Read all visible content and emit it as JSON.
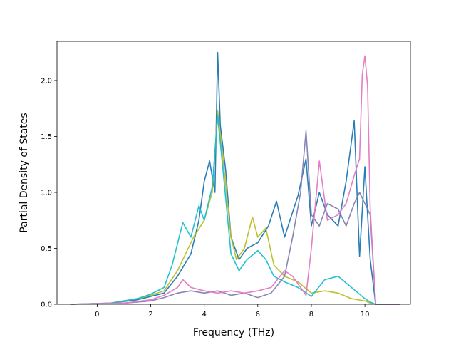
{
  "chart_data": {
    "type": "line",
    "title": "",
    "xlabel": "Frequency (THz)",
    "ylabel": "Partial Density of States",
    "xlim": [
      -1.5,
      11.7
    ],
    "ylim": [
      0,
      2.35
    ],
    "xticks": [
      0,
      2,
      4,
      6,
      8,
      10
    ],
    "yticks": [
      0.0,
      0.5,
      1.0,
      1.5,
      2.0
    ],
    "xtick_labels": [
      "0",
      "2",
      "4",
      "6",
      "8",
      "10"
    ],
    "ytick_labels": [
      "0.0",
      "0.5",
      "1.0",
      "1.5",
      "2.0"
    ],
    "grid": false,
    "legend": "none",
    "series": [
      {
        "color": "#1f77b4",
        "x": [
          -1.0,
          0.5,
          1.5,
          2.5,
          3.0,
          3.5,
          3.8,
          4.0,
          4.2,
          4.4,
          4.5,
          4.6,
          4.8,
          5.0,
          5.3,
          5.6,
          6.0,
          6.4,
          6.7,
          7.0,
          7.2,
          7.5,
          7.8,
          8.0,
          8.3,
          8.6,
          9.0,
          9.3,
          9.6,
          9.8,
          10.0,
          10.1,
          10.2,
          10.4,
          11.3
        ],
        "y": [
          0.0,
          0.01,
          0.04,
          0.1,
          0.25,
          0.45,
          0.75,
          1.1,
          1.28,
          1.0,
          2.25,
          1.6,
          1.2,
          0.6,
          0.4,
          0.5,
          0.55,
          0.7,
          0.92,
          0.6,
          0.75,
          0.97,
          1.3,
          0.7,
          1.0,
          0.8,
          0.7,
          1.1,
          1.64,
          0.43,
          1.23,
          0.8,
          0.4,
          0.0,
          0.0
        ]
      },
      {
        "color": "#bcbd22",
        "x": [
          -1.0,
          0.5,
          1.5,
          2.0,
          2.5,
          3.0,
          3.3,
          3.6,
          4.0,
          4.3,
          4.5,
          4.7,
          5.0,
          5.2,
          5.5,
          5.8,
          6.0,
          6.3,
          6.6,
          7.0,
          7.5,
          8.0,
          8.5,
          9.0,
          9.5,
          10.0,
          10.2,
          10.4,
          11.3
        ],
        "y": [
          0.0,
          0.01,
          0.05,
          0.08,
          0.12,
          0.3,
          0.45,
          0.6,
          0.75,
          1.0,
          1.73,
          1.3,
          0.6,
          0.4,
          0.5,
          0.78,
          0.6,
          0.68,
          0.35,
          0.25,
          0.2,
          0.1,
          0.12,
          0.1,
          0.05,
          0.03,
          0.01,
          0.0,
          0.0
        ]
      },
      {
        "color": "#17becf",
        "x": [
          -1.0,
          0.5,
          1.5,
          2.0,
          2.5,
          2.8,
          3.2,
          3.5,
          3.8,
          4.0,
          4.3,
          4.5,
          4.7,
          5.0,
          5.3,
          5.6,
          6.0,
          6.3,
          6.6,
          7.0,
          7.5,
          8.0,
          8.5,
          9.0,
          9.5,
          10.0,
          10.2,
          10.4,
          11.3
        ],
        "y": [
          0.0,
          0.01,
          0.05,
          0.09,
          0.15,
          0.35,
          0.73,
          0.6,
          0.88,
          0.75,
          1.05,
          1.68,
          1.2,
          0.45,
          0.3,
          0.4,
          0.48,
          0.4,
          0.25,
          0.2,
          0.15,
          0.07,
          0.22,
          0.25,
          0.15,
          0.05,
          0.02,
          0.0,
          0.0
        ]
      },
      {
        "color": "#7f7fb0",
        "x": [
          -1.0,
          1.0,
          2.0,
          2.5,
          3.0,
          3.5,
          4.0,
          4.5,
          5.0,
          5.5,
          6.0,
          6.5,
          7.0,
          7.3,
          7.6,
          7.8,
          8.0,
          8.3,
          8.6,
          9.0,
          9.3,
          9.6,
          9.8,
          10.0,
          10.2,
          10.4,
          11.3
        ],
        "y": [
          0.0,
          0.01,
          0.03,
          0.06,
          0.1,
          0.12,
          0.1,
          0.12,
          0.08,
          0.1,
          0.06,
          0.1,
          0.25,
          0.6,
          1.0,
          1.55,
          0.8,
          0.7,
          0.9,
          0.85,
          0.7,
          0.9,
          1.0,
          0.9,
          0.8,
          0.0,
          0.0
        ]
      },
      {
        "color": "#e377c2",
        "x": [
          -1.0,
          1.0,
          2.0,
          2.5,
          3.0,
          3.2,
          3.5,
          4.0,
          4.5,
          5.0,
          5.5,
          6.0,
          6.5,
          7.0,
          7.3,
          7.6,
          7.8,
          8.0,
          8.3,
          8.6,
          9.0,
          9.3,
          9.6,
          9.8,
          9.9,
          10.0,
          10.1,
          10.2,
          10.4,
          11.3
        ],
        "y": [
          0.0,
          0.01,
          0.04,
          0.08,
          0.15,
          0.22,
          0.15,
          0.12,
          0.1,
          0.12,
          0.1,
          0.12,
          0.15,
          0.3,
          0.25,
          0.15,
          0.08,
          0.5,
          1.28,
          0.75,
          0.8,
          0.9,
          1.15,
          1.3,
          2.05,
          2.22,
          1.95,
          0.85,
          0.0,
          0.0
        ]
      }
    ]
  }
}
